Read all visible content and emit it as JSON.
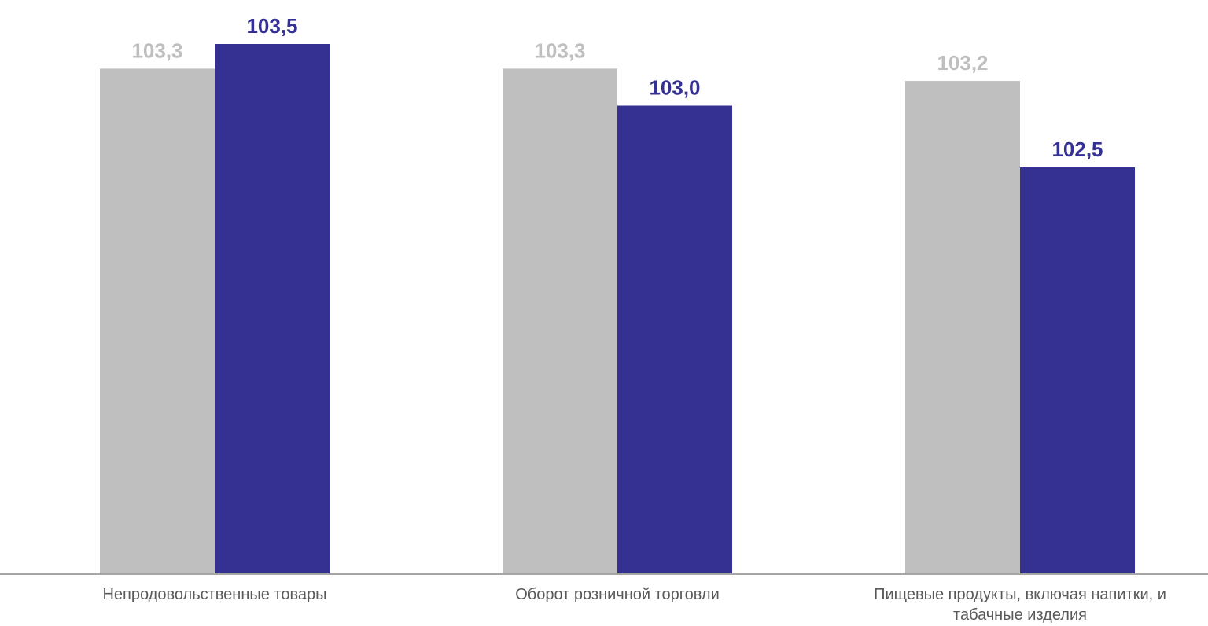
{
  "chart_data": {
    "type": "bar",
    "categories": [
      [
        "Непродовольственные товары"
      ],
      [
        "Оборот розничной торговли"
      ],
      [
        "Пищевые продукты, включая напитки, и",
        "табачные изделия"
      ]
    ],
    "series": [
      {
        "values": [
          103.3,
          103.3,
          103.2
        ],
        "labels": [
          "103,3",
          "103,3",
          "103,2"
        ],
        "color": "#bfbfbf"
      },
      {
        "values": [
          103.5,
          103.0,
          102.5
        ],
        "labels": [
          "103,5",
          "103,0",
          "102,5"
        ],
        "color": "#353193"
      }
    ],
    "ylim": [
      99.2,
      103.5
    ],
    "axis_color": "#a6a6a6",
    "grid": false,
    "legend": "none"
  }
}
